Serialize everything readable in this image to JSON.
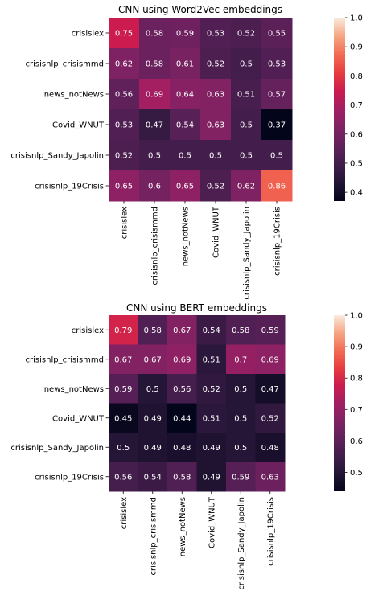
{
  "chart_data": [
    {
      "type": "heatmap",
      "title": "CNN using Word2Vec embeddings",
      "rows": [
        "crisislex",
        "crisisnlp_crisismmd",
        "news_notNews",
        "Covid_WNUT",
        "crisisnlp_Sandy_Japolin",
        "crisisnlp_19Crisis"
      ],
      "cols": [
        "crisislex",
        "crisisnlp_crisismmd",
        "news_notNews",
        "Covid_WNUT",
        "crisisnlp_Sandy_Japolin",
        "crisisnlp_19Crisis"
      ],
      "values": [
        [
          0.75,
          0.58,
          0.59,
          0.53,
          0.52,
          0.55
        ],
        [
          0.62,
          0.58,
          0.61,
          0.52,
          0.5,
          0.53
        ],
        [
          0.56,
          0.69,
          0.64,
          0.63,
          0.51,
          0.57
        ],
        [
          0.53,
          0.47,
          0.54,
          0.63,
          0.5,
          0.37
        ],
        [
          0.52,
          0.5,
          0.5,
          0.5,
          0.5,
          0.5
        ],
        [
          0.65,
          0.6,
          0.65,
          0.52,
          0.62,
          0.86
        ]
      ],
      "labels": [
        [
          "0.75",
          "0.58",
          "0.59",
          "0.53",
          "0.52",
          "0.55"
        ],
        [
          "0.62",
          "0.58",
          "0.61",
          "0.52",
          "0.5",
          "0.53"
        ],
        [
          "0.56",
          "0.69",
          "0.64",
          "0.63",
          "0.51",
          "0.57"
        ],
        [
          "0.53",
          "0.47",
          "0.54",
          "0.63",
          "0.5",
          "0.37"
        ],
        [
          "0.52",
          "0.5",
          "0.5",
          "0.5",
          "0.5",
          "0.5"
        ],
        [
          "0.65",
          "0.6",
          "0.65",
          "0.52",
          "0.62",
          "0.86"
        ]
      ],
      "colorbar": {
        "range": [
          0.37,
          1.0
        ],
        "ticks": [
          0.4,
          0.5,
          0.6,
          0.7,
          0.8,
          0.9,
          1.0
        ],
        "tick_labels": [
          "0.4",
          "0.5",
          "0.6",
          "0.7",
          "0.8",
          "0.9",
          "1.0"
        ]
      }
    },
    {
      "type": "heatmap",
      "title": "CNN using BERT embeddings",
      "rows": [
        "crisislex",
        "crisisnlp_crisismmd",
        "news_notNews",
        "Covid_WNUT",
        "crisisnlp_Sandy_Japolin",
        "crisisnlp_19Crisis"
      ],
      "cols": [
        "crisislex",
        "crisisnlp_crisismmd",
        "news_notNews",
        "Covid_WNUT",
        "crisisnlp_Sandy_Japolin",
        "crisisnlp_19Crisis"
      ],
      "values": [
        [
          0.79,
          0.58,
          0.67,
          0.54,
          0.58,
          0.59
        ],
        [
          0.67,
          0.67,
          0.69,
          0.51,
          0.7,
          0.69
        ],
        [
          0.59,
          0.5,
          0.56,
          0.52,
          0.5,
          0.47
        ],
        [
          0.45,
          0.49,
          0.44,
          0.51,
          0.5,
          0.52
        ],
        [
          0.5,
          0.49,
          0.48,
          0.49,
          0.5,
          0.48
        ],
        [
          0.56,
          0.54,
          0.58,
          0.49,
          0.59,
          0.63
        ]
      ],
      "labels": [
        [
          "0.79",
          "0.58",
          "0.67",
          "0.54",
          "0.58",
          "0.59"
        ],
        [
          "0.67",
          "0.67",
          "0.69",
          "0.51",
          "0.7",
          "0.69"
        ],
        [
          "0.59",
          "0.5",
          "0.56",
          "0.52",
          "0.5",
          "0.47"
        ],
        [
          "0.45",
          "0.49",
          "0.44",
          "0.51",
          "0.5",
          "0.52"
        ],
        [
          "0.5",
          "0.49",
          "0.48",
          "0.49",
          "0.5",
          "0.48"
        ],
        [
          "0.56",
          "0.54",
          "0.58",
          "0.49",
          "0.59",
          "0.63"
        ]
      ],
      "colorbar": {
        "range": [
          0.44,
          1.0
        ],
        "ticks": [
          0.5,
          0.6,
          0.7,
          0.8,
          0.9,
          1.0
        ],
        "tick_labels": [
          "0.5",
          "0.6",
          "0.7",
          "0.8",
          "0.9",
          "1.0"
        ]
      }
    }
  ]
}
